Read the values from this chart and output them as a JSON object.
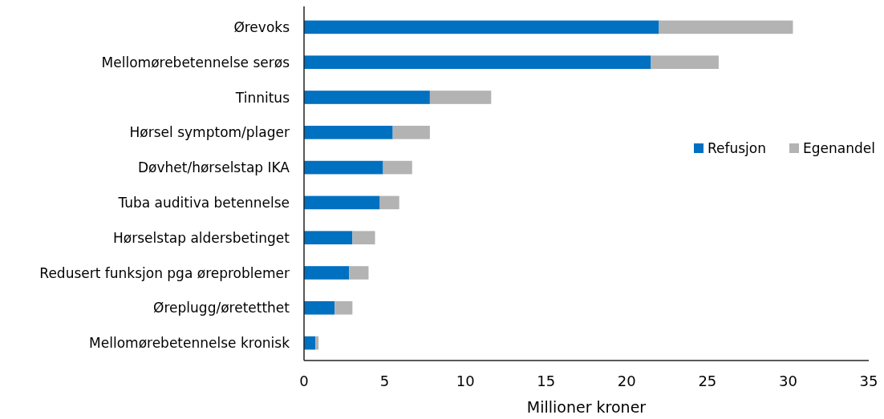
{
  "chart_data": {
    "type": "bar",
    "orientation": "horizontal",
    "stacked": true,
    "xlabel": "Millioner kroner",
    "categories": [
      "Ørevoks",
      "Mellomørebetennelse serøs",
      "Tinnitus",
      "Hørsel symptom/plager",
      "Døvhet/hørselstap IKA",
      "Tuba auditiva betennelse",
      "Hørselstap aldersbetinget",
      "Redusert funksjon pga øreproblemer",
      "Øreplugg/øretetthet",
      "Mellomørebetennelse kronisk"
    ],
    "series": [
      {
        "name": "Refusjon",
        "color": "#0070c0",
        "values": [
          22.0,
          21.5,
          7.8,
          5.5,
          4.9,
          4.7,
          3.0,
          2.8,
          1.9,
          0.7
        ]
      },
      {
        "name": "Egenandel",
        "color": "#b3b3b3",
        "values": [
          8.3,
          4.2,
          3.8,
          2.3,
          1.8,
          1.2,
          1.4,
          1.2,
          1.1,
          0.2
        ]
      }
    ],
    "xlim": [
      0,
      35
    ],
    "xticks": [
      0,
      5,
      10,
      15,
      20,
      25,
      30,
      35
    ],
    "grid": false,
    "legend": "right"
  }
}
